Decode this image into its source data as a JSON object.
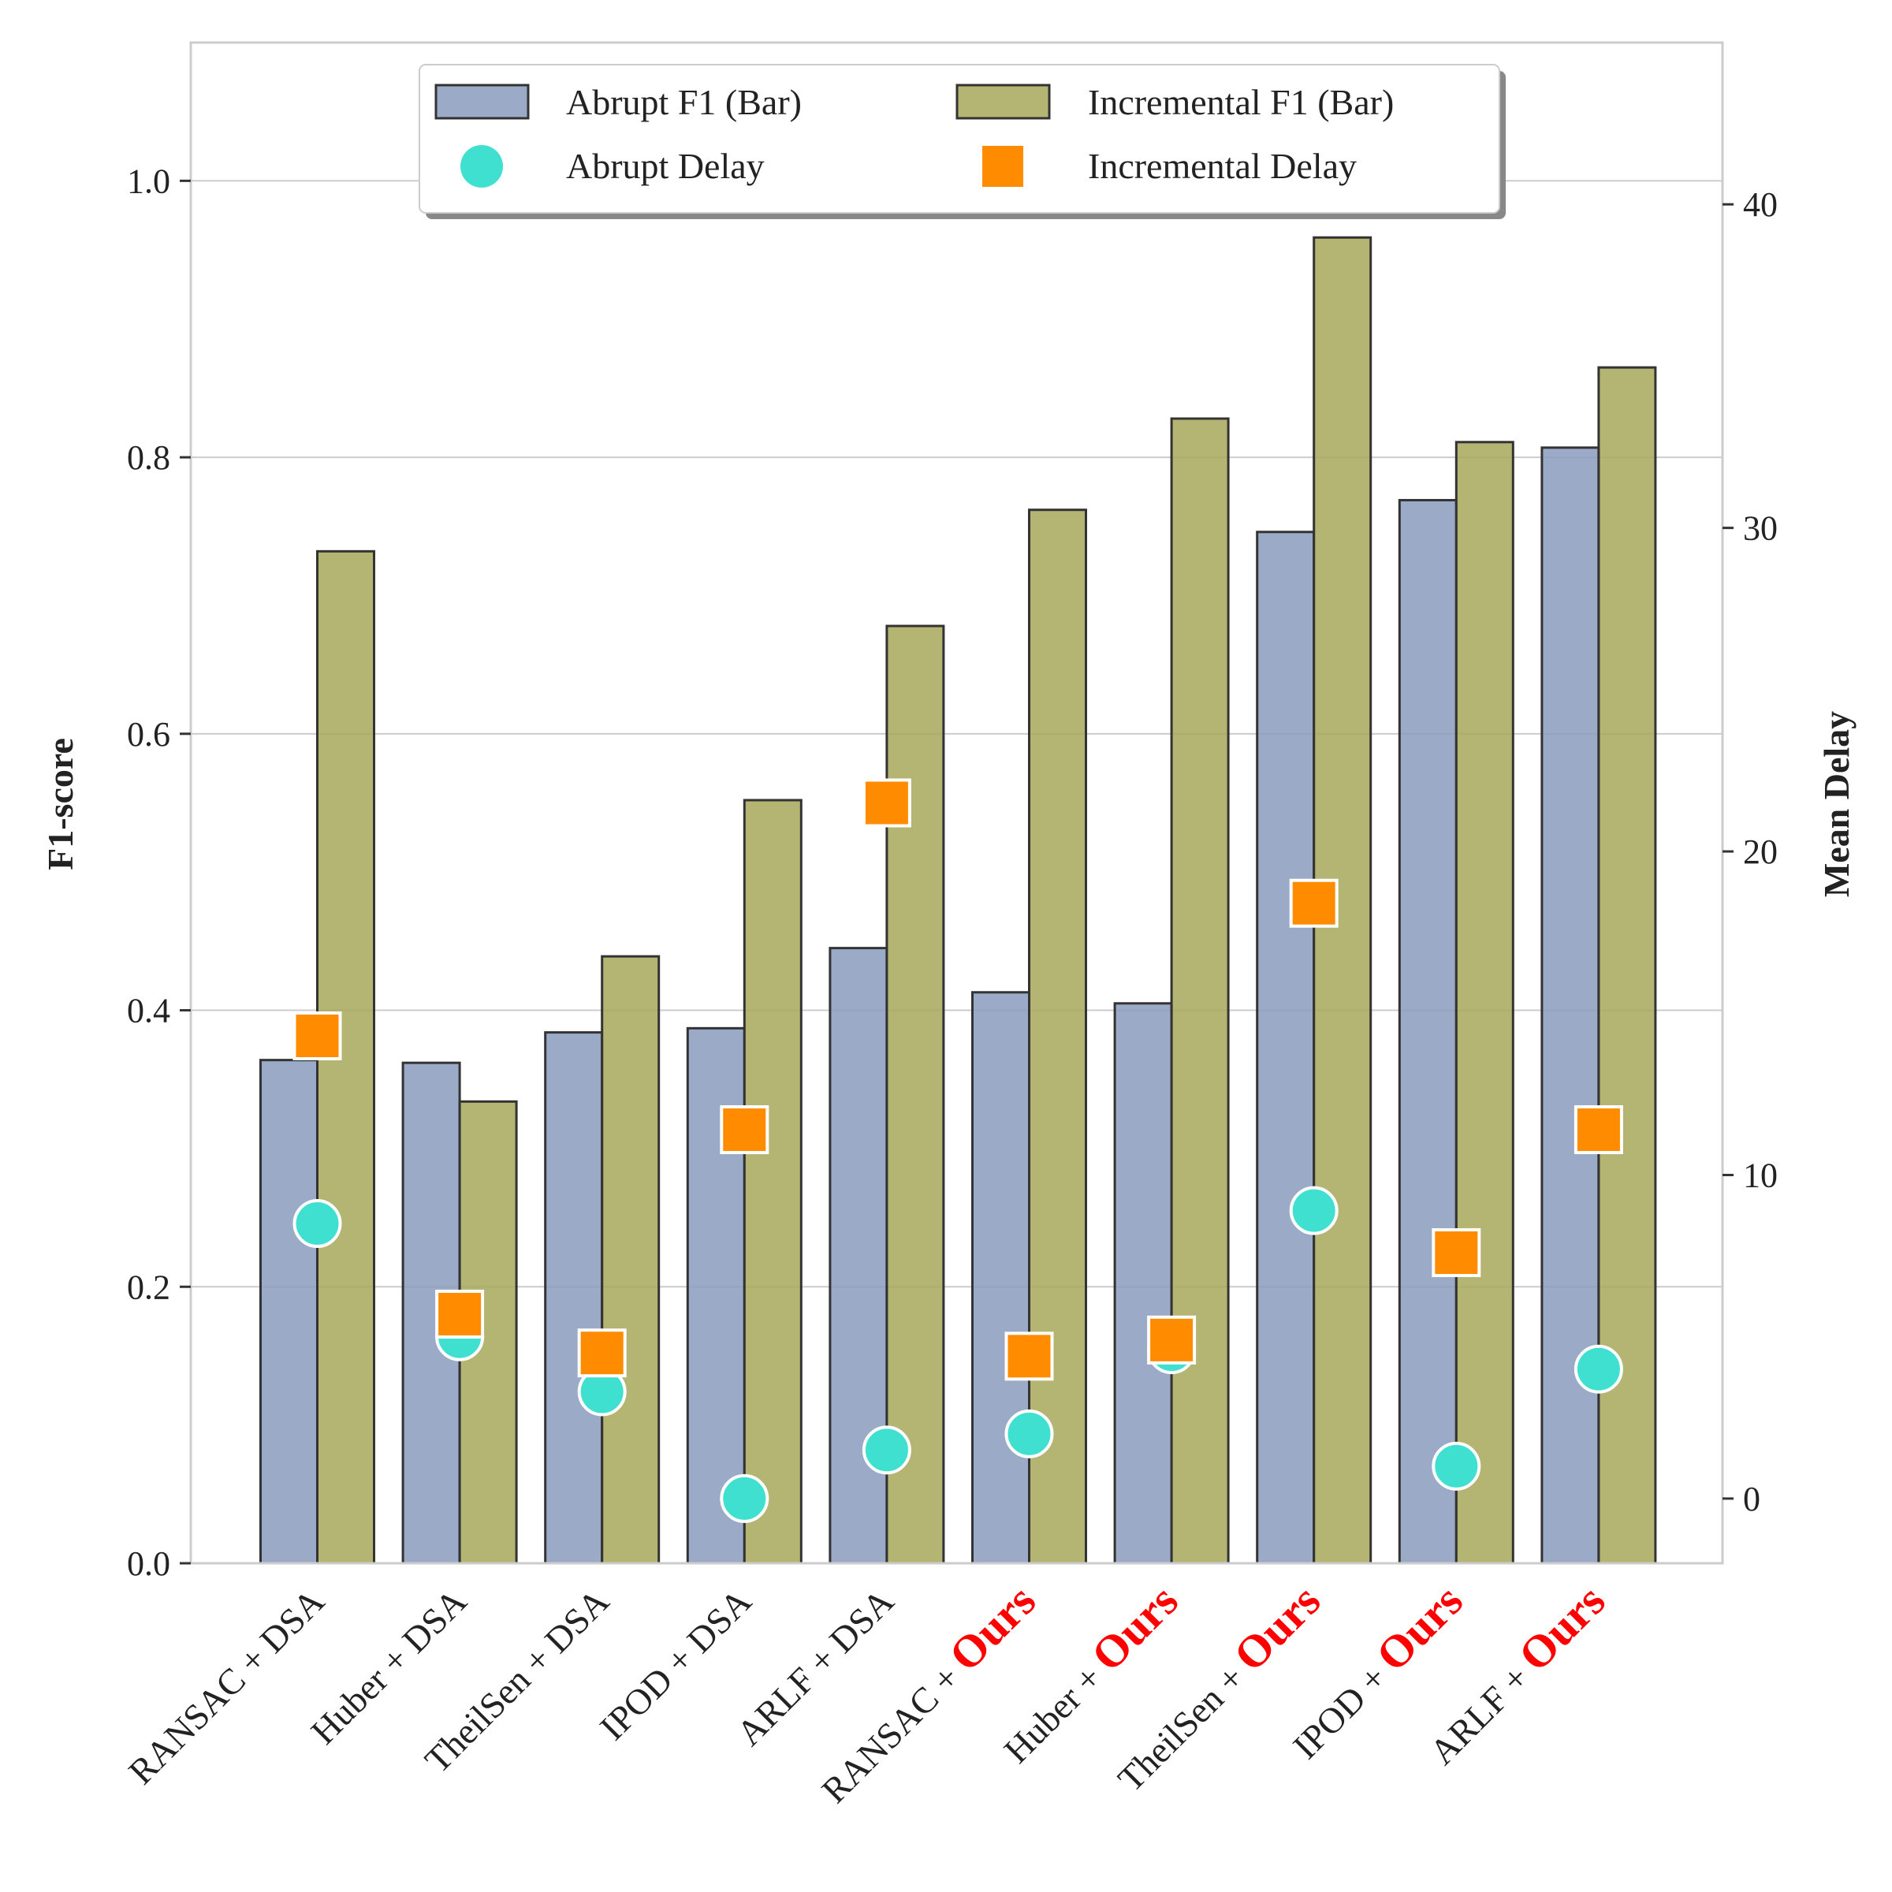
{
  "chart_data": {
    "type": "bar",
    "categories": [
      {
        "prefix": "RANSAC + ",
        "suffix": "DSA",
        "highlight": false
      },
      {
        "prefix": "Huber + ",
        "suffix": "DSA",
        "highlight": false
      },
      {
        "prefix": "TheilSen + ",
        "suffix": "DSA",
        "highlight": false
      },
      {
        "prefix": "IPOD + ",
        "suffix": "DSA",
        "highlight": false
      },
      {
        "prefix": "ARLF + ",
        "suffix": "DSA",
        "highlight": false
      },
      {
        "prefix": "RANSAC + ",
        "suffix": "Ours",
        "highlight": true
      },
      {
        "prefix": "Huber + ",
        "suffix": "Ours",
        "highlight": true
      },
      {
        "prefix": "TheilSen + ",
        "suffix": "Ours",
        "highlight": true
      },
      {
        "prefix": "IPOD + ",
        "suffix": "Ours",
        "highlight": true
      },
      {
        "prefix": "ARLF + ",
        "suffix": "Ours",
        "highlight": true
      }
    ],
    "bar_series": [
      {
        "name": "Abrupt F1 (Bar)",
        "color": "#8a9cbd",
        "values": [
          0.364,
          0.362,
          0.384,
          0.387,
          0.445,
          0.413,
          0.405,
          0.746,
          0.769,
          0.807
        ]
      },
      {
        "name": "Incremental F1 (Bar)",
        "color": "#a8a85a",
        "values": [
          0.732,
          0.334,
          0.439,
          0.552,
          0.678,
          0.762,
          0.828,
          0.959,
          0.811,
          0.865
        ]
      }
    ],
    "marker_series": [
      {
        "name": "Abrupt Delay",
        "marker": "circle",
        "color": "#40e0d0",
        "values": [
          8.5,
          5.0,
          3.3,
          0.0,
          1.5,
          2.0,
          4.6,
          8.9,
          1.0,
          4.0
        ]
      },
      {
        "name": "Incremental Delay",
        "marker": "square",
        "color": "#ff8c00",
        "values": [
          14.3,
          5.7,
          4.5,
          11.4,
          21.5,
          4.4,
          4.9,
          18.4,
          7.6,
          11.4
        ]
      }
    ],
    "ylabel": "F1-score",
    "y2label": "Mean Delay",
    "ylim": [
      0,
      1.1
    ],
    "y2lim": [
      -2,
      45
    ],
    "yticks": [
      "0.0",
      "0.2",
      "0.4",
      "0.6",
      "0.8",
      "1.0"
    ],
    "y2ticks": [
      "0",
      "10",
      "20",
      "30",
      "40"
    ],
    "grid": true,
    "legend": "top-center"
  }
}
